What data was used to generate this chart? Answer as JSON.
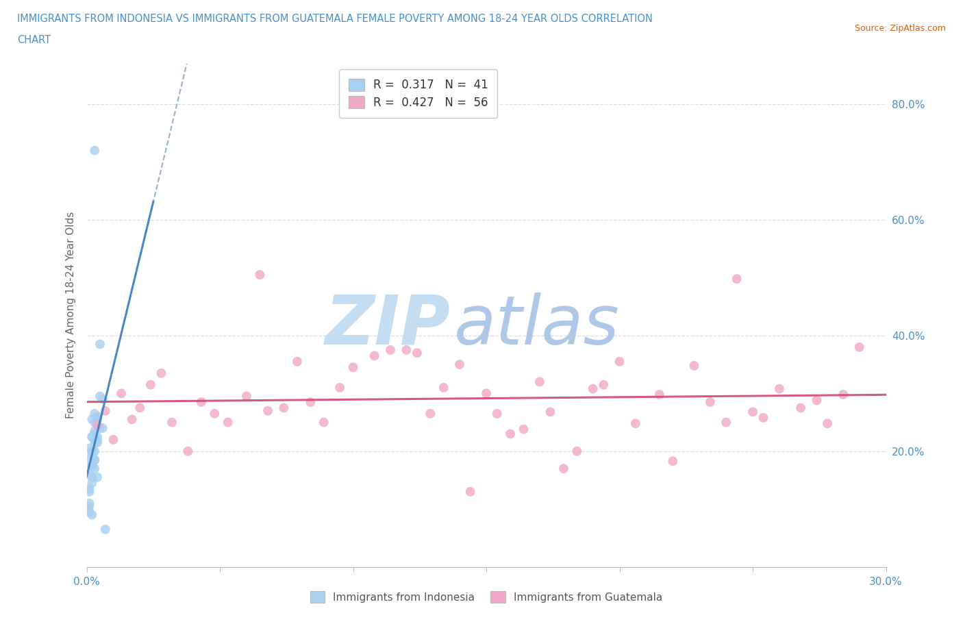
{
  "title_line1": "IMMIGRANTS FROM INDONESIA VS IMMIGRANTS FROM GUATEMALA FEMALE POVERTY AMONG 18-24 YEAR OLDS CORRELATION",
  "title_line2": "CHART",
  "source_text": "Source: ZipAtlas.com",
  "ylabel": "Female Poverty Among 18-24 Year Olds",
  "xlim": [
    0.0,
    0.3
  ],
  "ylim": [
    0.0,
    0.87
  ],
  "xtick_positions": [
    0.0,
    0.05,
    0.1,
    0.15,
    0.2,
    0.25,
    0.3
  ],
  "ytick_positions": [
    0.0,
    0.2,
    0.4,
    0.6,
    0.8
  ],
  "right_yticklabels": [
    "",
    "20.0%",
    "40.0%",
    "60.0%",
    "80.0%"
  ],
  "bottom_xticklabels": [
    "0.0%",
    "",
    "",
    "",
    "",
    "",
    "30.0%"
  ],
  "r_indonesia": 0.317,
  "n_indonesia": 41,
  "r_guatemala": 0.427,
  "n_guatemala": 56,
  "legend1_label": "Immigrants from Indonesia",
  "legend2_label": "Immigrants from Guatemala",
  "color_indonesia": "#a8d0f0",
  "color_guatemala": "#f0a8c8",
  "trendline_indonesia_color": "#4080c0",
  "trendline_guatemala_color": "#d04870",
  "watermark_zip_color": "#c8dff0",
  "watermark_atlas_color": "#b8c8e8",
  "grid_color": "#dddddd",
  "title_color": "#4a90c8",
  "source_color": "#d06010",
  "axis_label_color": "#666666",
  "tick_label_color": "#4a90c8",
  "indonesia_x": [
    0.002,
    0.003,
    0.001,
    0.003,
    0.002,
    0.004,
    0.003,
    0.002,
    0.003,
    0.005,
    0.005,
    0.006,
    0.003,
    0.002,
    0.002,
    0.001,
    0.002,
    0.003,
    0.004,
    0.004,
    0.005,
    0.006,
    0.003,
    0.002,
    0.001,
    0.001,
    0.003,
    0.004,
    0.002,
    0.003,
    0.001,
    0.001,
    0.003,
    0.004,
    0.002,
    0.002,
    0.001,
    0.001,
    0.004,
    0.003,
    0.007
  ],
  "indonesia_y": [
    0.255,
    0.22,
    0.185,
    0.25,
    0.225,
    0.26,
    0.235,
    0.175,
    0.215,
    0.24,
    0.385,
    0.29,
    0.72,
    0.225,
    0.195,
    0.205,
    0.2,
    0.185,
    0.255,
    0.225,
    0.295,
    0.24,
    0.265,
    0.175,
    0.135,
    0.16,
    0.185,
    0.215,
    0.155,
    0.23,
    0.13,
    0.105,
    0.2,
    0.155,
    0.09,
    0.145,
    0.11,
    0.095,
    0.22,
    0.17,
    0.065
  ],
  "guatemala_x": [
    0.004,
    0.007,
    0.01,
    0.013,
    0.017,
    0.02,
    0.024,
    0.028,
    0.032,
    0.038,
    0.043,
    0.048,
    0.053,
    0.06,
    0.065,
    0.068,
    0.074,
    0.079,
    0.084,
    0.089,
    0.095,
    0.1,
    0.108,
    0.114,
    0.12,
    0.124,
    0.129,
    0.134,
    0.14,
    0.144,
    0.15,
    0.154,
    0.159,
    0.164,
    0.17,
    0.174,
    0.179,
    0.184,
    0.19,
    0.194,
    0.2,
    0.206,
    0.215,
    0.22,
    0.228,
    0.234,
    0.24,
    0.244,
    0.25,
    0.254,
    0.26,
    0.268,
    0.274,
    0.278,
    0.284,
    0.29
  ],
  "guatemala_y": [
    0.245,
    0.27,
    0.22,
    0.3,
    0.255,
    0.275,
    0.315,
    0.335,
    0.25,
    0.2,
    0.285,
    0.265,
    0.25,
    0.295,
    0.505,
    0.27,
    0.275,
    0.355,
    0.285,
    0.25,
    0.31,
    0.345,
    0.365,
    0.375,
    0.375,
    0.37,
    0.265,
    0.31,
    0.35,
    0.13,
    0.3,
    0.265,
    0.23,
    0.238,
    0.32,
    0.268,
    0.17,
    0.2,
    0.308,
    0.315,
    0.355,
    0.248,
    0.298,
    0.183,
    0.348,
    0.285,
    0.25,
    0.498,
    0.268,
    0.258,
    0.308,
    0.275,
    0.288,
    0.248,
    0.298,
    0.38
  ]
}
